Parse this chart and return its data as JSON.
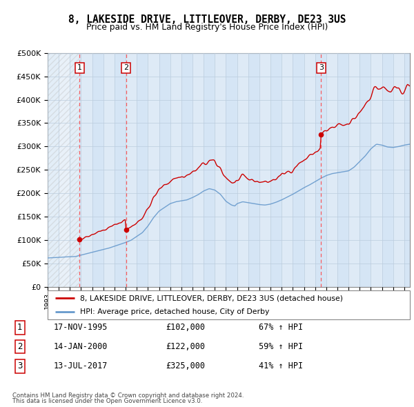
{
  "title": "8, LAKESIDE DRIVE, LITTLEOVER, DERBY, DE23 3US",
  "subtitle": "Price paid vs. HM Land Registry's House Price Index (HPI)",
  "sales": [
    {
      "date_num": 1995.878,
      "price": 102000,
      "label": "1"
    },
    {
      "date_num": 2000.038,
      "price": 122000,
      "label": "2"
    },
    {
      "date_num": 2017.536,
      "price": 325000,
      "label": "3"
    }
  ],
  "sale_table": [
    {
      "num": "1",
      "date": "17-NOV-1995",
      "price": "£102,000",
      "change": "67% ↑ HPI"
    },
    {
      "num": "2",
      "date": "14-JAN-2000",
      "price": "£122,000",
      "change": "59% ↑ HPI"
    },
    {
      "num": "3",
      "date": "13-JUL-2017",
      "price": "£325,000",
      "change": "41% ↑ HPI"
    }
  ],
  "legend_line1": "8, LAKESIDE DRIVE, LITTLEOVER, DERBY, DE23 3US (detached house)",
  "legend_line2": "HPI: Average price, detached house, City of Derby",
  "footer1": "Contains HM Land Registry data © Crown copyright and database right 2024.",
  "footer2": "This data is licensed under the Open Government Licence v3.0.",
  "sale_color": "#cc0000",
  "hpi_color": "#6699cc",
  "ylim": [
    0,
    500000
  ],
  "yticks": [
    0,
    50000,
    100000,
    150000,
    200000,
    250000,
    300000,
    350000,
    400000,
    450000,
    500000
  ],
  "xmin": 1993.0,
  "xmax": 2025.5,
  "bg_color": "#dce8f5"
}
